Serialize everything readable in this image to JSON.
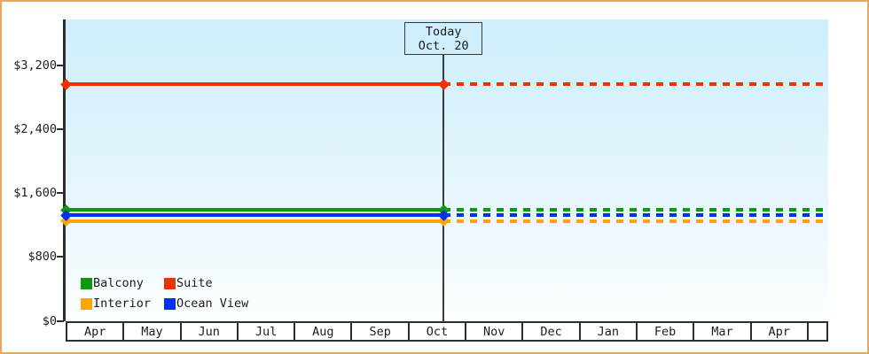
{
  "chart_data": {
    "type": "line",
    "title": "",
    "xlabel": "",
    "ylabel": "",
    "grid": false,
    "legend_position": "bottom-left",
    "marker": "diamond",
    "line_style": "solid before today marker, dashed projection after",
    "categories": [
      "Apr",
      "May",
      "Jun",
      "Jul",
      "Aug",
      "Sep",
      "Oct",
      "Nov",
      "Dec",
      "Jan",
      "Feb",
      "Mar",
      "Apr"
    ],
    "series": [
      {
        "name": "Balcony",
        "color": "#0a9a0a",
        "value": 1390,
        "values": [
          1390,
          1390,
          1390,
          1390,
          1390,
          1390,
          1390,
          1390,
          1390,
          1390,
          1390,
          1390,
          1390
        ]
      },
      {
        "name": "Suite",
        "color": "#ee3300",
        "value": 2960,
        "values": [
          2960,
          2960,
          2960,
          2960,
          2960,
          2960,
          2960,
          2960,
          2960,
          2960,
          2960,
          2960,
          2960
        ]
      },
      {
        "name": "Interior",
        "color": "#ffa500",
        "value": 1250,
        "values": [
          1250,
          1250,
          1250,
          1250,
          1250,
          1250,
          1250,
          1250,
          1250,
          1250,
          1250,
          1250,
          1250
        ]
      },
      {
        "name": "Ocean View",
        "color": "#0033ee",
        "value": 1320,
        "values": [
          1320,
          1320,
          1320,
          1320,
          1320,
          1320,
          1320,
          1320,
          1320,
          1320,
          1320,
          1320,
          1320
        ]
      }
    ],
    "yticks": [
      {
        "value": 0,
        "label": "$0"
      },
      {
        "value": 800,
        "label": "$800"
      },
      {
        "value": 1600,
        "label": "$1,600"
      },
      {
        "value": 2400,
        "label": "$2,400"
      },
      {
        "value": 3200,
        "label": "$3,200"
      }
    ],
    "ylim": [
      0,
      3770
    ],
    "annotation": {
      "line1": "Today",
      "line2": "Oct. 20",
      "month": "Oct",
      "day": 20
    }
  },
  "colors": {
    "window_border": "#eaa75e",
    "plot_gradient_top": "#cdeefa",
    "plot_gradient_bottom": "#fbfeff",
    "axis": "#2e2e2e",
    "text": "#1c1c1c",
    "today_box_bg": "#cdeefa"
  }
}
